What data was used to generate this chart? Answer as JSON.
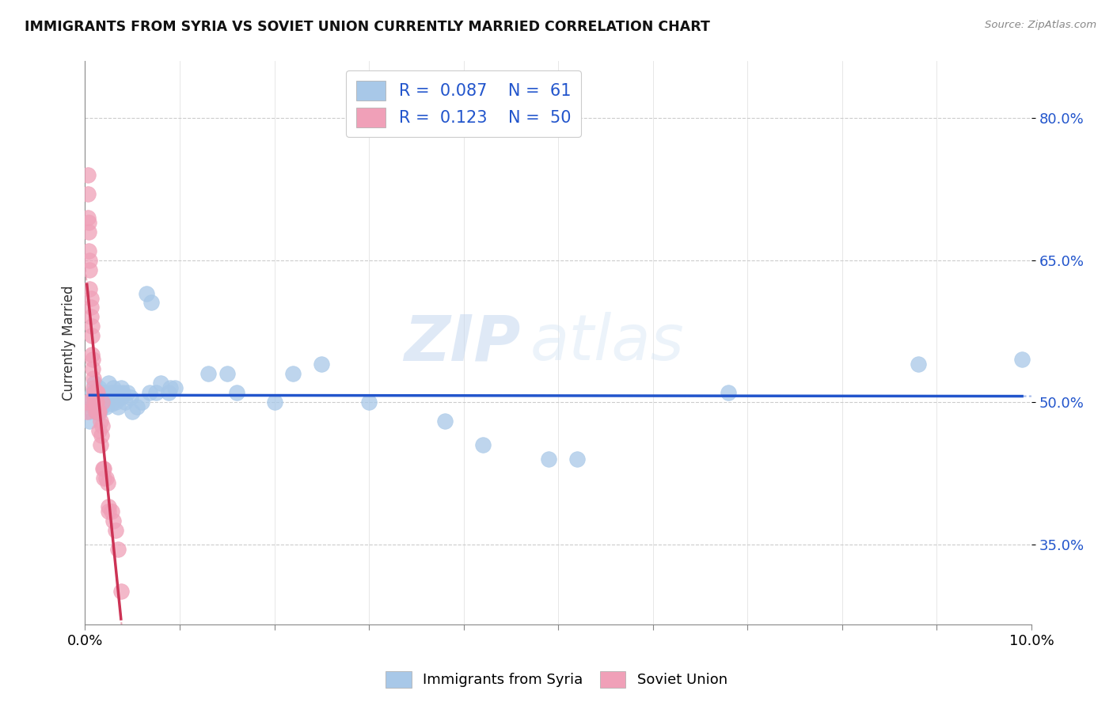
{
  "title": "IMMIGRANTS FROM SYRIA VS SOVIET UNION CURRENTLY MARRIED CORRELATION CHART",
  "source": "Source: ZipAtlas.com",
  "ylabel": "Currently Married",
  "xmin": 0.0,
  "xmax": 0.1,
  "yticks": [
    0.35,
    0.5,
    0.65,
    0.8
  ],
  "ytick_labels": [
    "35.0%",
    "50.0%",
    "65.0%",
    "80.0%"
  ],
  "ymin": 0.265,
  "ymax": 0.86,
  "legend_syria_R": "0.087",
  "legend_syria_N": "61",
  "legend_soviet_R": "0.123",
  "legend_soviet_N": "50",
  "syria_color": "#a8c8e8",
  "soviet_color": "#f0a0b8",
  "syria_line_color": "#2255cc",
  "soviet_line_color": "#cc3355",
  "watermark_text": "ZIP",
  "watermark_text2": "atlas",
  "syria_x": [
    0.0005,
    0.0005,
    0.0005,
    0.0008,
    0.0008,
    0.001,
    0.001,
    0.001,
    0.0012,
    0.0012,
    0.0015,
    0.0015,
    0.0015,
    0.0015,
    0.0018,
    0.0018,
    0.0018,
    0.002,
    0.002,
    0.0022,
    0.0022,
    0.0025,
    0.0025,
    0.0028,
    0.0028,
    0.003,
    0.003,
    0.0032,
    0.0035,
    0.0035,
    0.0038,
    0.0038,
    0.004,
    0.0042,
    0.0045,
    0.0048,
    0.005,
    0.0055,
    0.006,
    0.0065,
    0.0068,
    0.007,
    0.0075,
    0.008,
    0.0088,
    0.009,
    0.0095,
    0.013,
    0.015,
    0.016,
    0.02,
    0.022,
    0.025,
    0.03,
    0.038,
    0.042,
    0.049,
    0.052,
    0.068,
    0.088,
    0.099
  ],
  "syria_y": [
    0.5,
    0.49,
    0.48,
    0.51,
    0.495,
    0.505,
    0.52,
    0.495,
    0.5,
    0.49,
    0.515,
    0.505,
    0.498,
    0.488,
    0.51,
    0.5,
    0.495,
    0.51,
    0.498,
    0.505,
    0.495,
    0.52,
    0.505,
    0.51,
    0.498,
    0.515,
    0.505,
    0.5,
    0.51,
    0.495,
    0.515,
    0.505,
    0.51,
    0.5,
    0.51,
    0.505,
    0.49,
    0.495,
    0.5,
    0.615,
    0.51,
    0.605,
    0.51,
    0.52,
    0.51,
    0.515,
    0.515,
    0.53,
    0.53,
    0.51,
    0.5,
    0.53,
    0.54,
    0.5,
    0.48,
    0.455,
    0.44,
    0.44,
    0.51,
    0.54,
    0.545
  ],
  "soviet_x": [
    0.0002,
    0.0002,
    0.0003,
    0.0003,
    0.0003,
    0.0004,
    0.0004,
    0.0004,
    0.0005,
    0.0005,
    0.0005,
    0.0006,
    0.0006,
    0.0006,
    0.0007,
    0.0007,
    0.0007,
    0.0008,
    0.0008,
    0.0009,
    0.0009,
    0.001,
    0.001,
    0.001,
    0.0011,
    0.0011,
    0.0012,
    0.0012,
    0.0013,
    0.0013,
    0.0014,
    0.0015,
    0.0015,
    0.0016,
    0.0016,
    0.0017,
    0.0018,
    0.0018,
    0.0019,
    0.002,
    0.002,
    0.0022,
    0.0024,
    0.0025,
    0.0025,
    0.0028,
    0.003,
    0.0032,
    0.0035,
    0.0038
  ],
  "soviet_y": [
    0.5,
    0.49,
    0.74,
    0.72,
    0.695,
    0.69,
    0.68,
    0.66,
    0.65,
    0.64,
    0.62,
    0.61,
    0.6,
    0.59,
    0.58,
    0.57,
    0.55,
    0.545,
    0.535,
    0.525,
    0.515,
    0.51,
    0.505,
    0.5,
    0.498,
    0.49,
    0.51,
    0.5,
    0.51,
    0.49,
    0.49,
    0.49,
    0.47,
    0.48,
    0.455,
    0.465,
    0.5,
    0.475,
    0.43,
    0.43,
    0.42,
    0.42,
    0.415,
    0.39,
    0.385,
    0.385,
    0.375,
    0.365,
    0.345,
    0.3
  ]
}
